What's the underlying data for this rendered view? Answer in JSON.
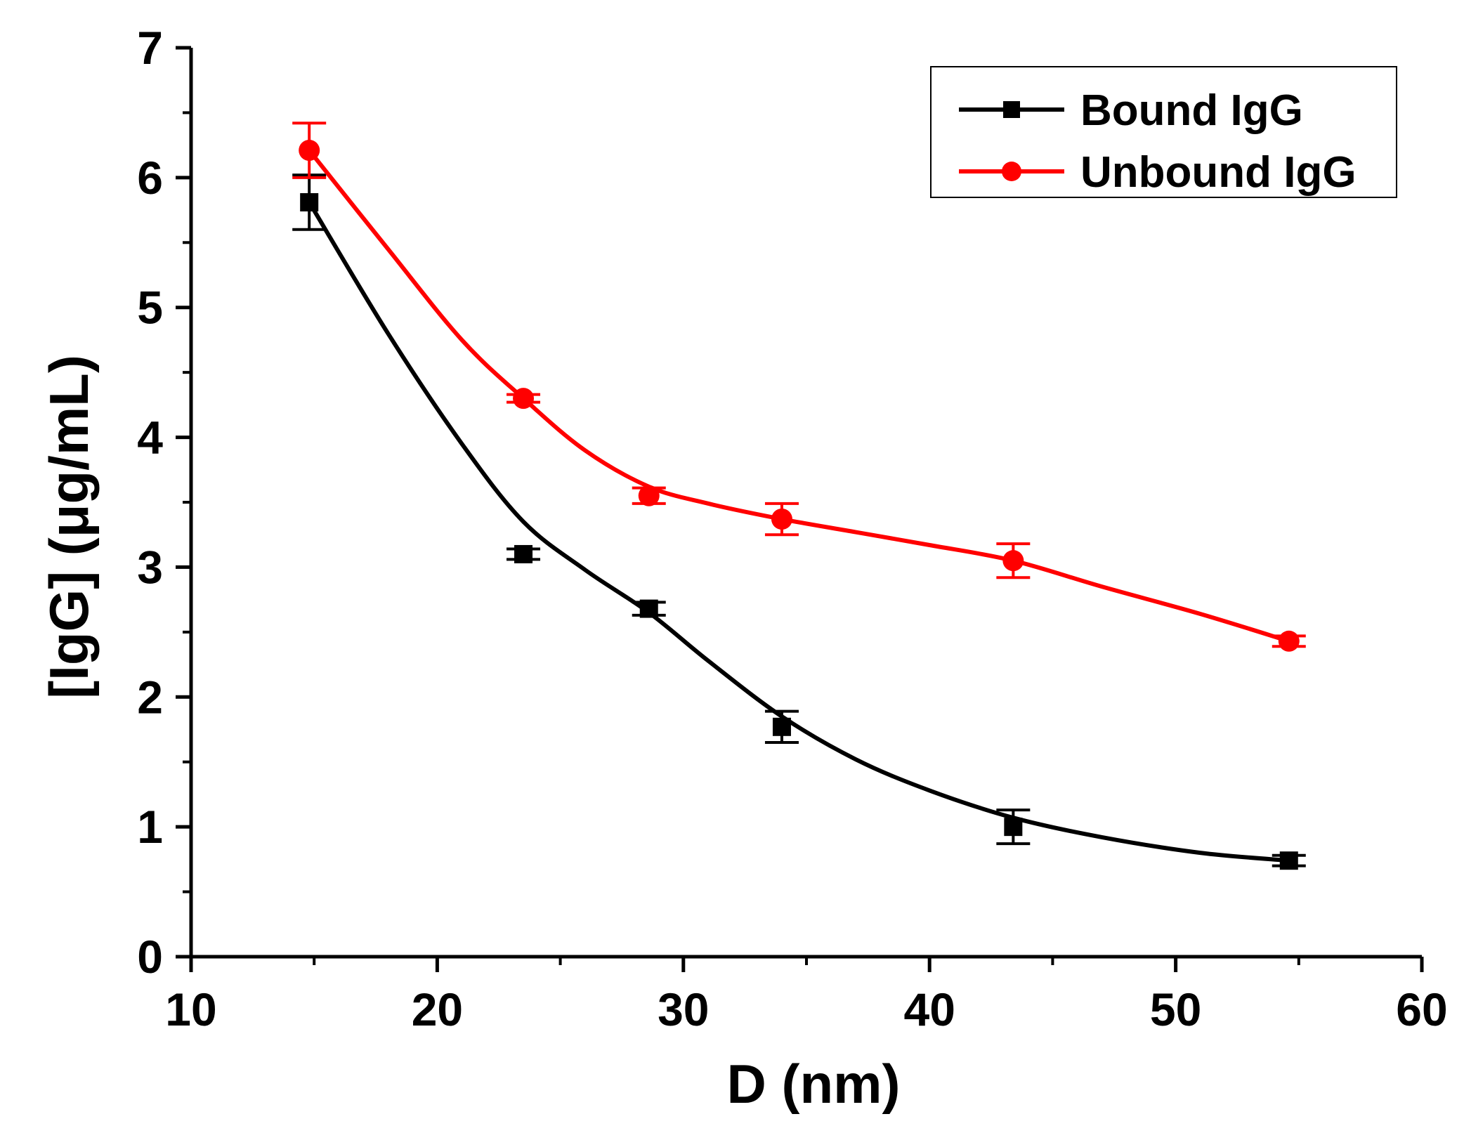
{
  "chart_data": {
    "type": "line",
    "title": "",
    "xlabel": "D (nm)",
    "ylabel": "[IgG] (μg/mL)",
    "xlim": [
      10,
      60
    ],
    "ylim": [
      0,
      7
    ],
    "x_ticks": [
      "10",
      "20",
      "30",
      "40",
      "50",
      "60"
    ],
    "y_ticks": [
      "0",
      "1",
      "2",
      "3",
      "4",
      "5",
      "6",
      "7"
    ],
    "grid": false,
    "legend_position": "top-right",
    "series": [
      {
        "name": "Bound IgG",
        "color": "#000000",
        "marker": "square",
        "x": [
          14.8,
          23.5,
          28.6,
          34.0,
          43.4,
          54.6
        ],
        "y": [
          5.81,
          3.1,
          2.68,
          1.77,
          1.0,
          0.74
        ],
        "error": [
          0.21,
          0.04,
          0.05,
          0.12,
          0.13,
          0.04
        ],
        "fit": [
          [
            14.8,
            5.81
          ],
          [
            18,
            4.8
          ],
          [
            21,
            3.95
          ],
          [
            23.5,
            3.35
          ],
          [
            26,
            2.98
          ],
          [
            28.6,
            2.65
          ],
          [
            31,
            2.28
          ],
          [
            34,
            1.85
          ],
          [
            37,
            1.52
          ],
          [
            40,
            1.28
          ],
          [
            43.4,
            1.07
          ],
          [
            47,
            0.92
          ],
          [
            51,
            0.8
          ],
          [
            54.6,
            0.74
          ]
        ]
      },
      {
        "name": "Unbound IgG",
        "color": "#ff0000",
        "marker": "circle",
        "x": [
          14.8,
          23.5,
          28.6,
          34.0,
          43.4,
          54.6
        ],
        "y": [
          6.21,
          4.3,
          3.55,
          3.37,
          3.05,
          2.43
        ],
        "error": [
          0.21,
          0.03,
          0.06,
          0.12,
          0.13,
          0.04
        ],
        "fit": [
          [
            14.8,
            6.21
          ],
          [
            18,
            5.45
          ],
          [
            21,
            4.75
          ],
          [
            23.5,
            4.3
          ],
          [
            26,
            3.9
          ],
          [
            28.6,
            3.62
          ],
          [
            31,
            3.49
          ],
          [
            34,
            3.37
          ],
          [
            37,
            3.27
          ],
          [
            40,
            3.17
          ],
          [
            43.4,
            3.05
          ],
          [
            47,
            2.85
          ],
          [
            51,
            2.64
          ],
          [
            54.6,
            2.43
          ]
        ]
      }
    ]
  }
}
